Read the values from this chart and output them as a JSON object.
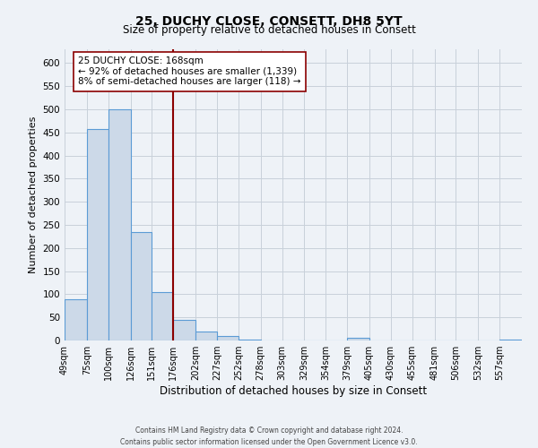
{
  "title": "25, DUCHY CLOSE, CONSETT, DH8 5YT",
  "subtitle": "Size of property relative to detached houses in Consett",
  "xlabel": "Distribution of detached houses by size in Consett",
  "ylabel": "Number of detached properties",
  "bar_color": "#ccd9e8",
  "bar_edge_color": "#5b9bd5",
  "bins": [
    49,
    75,
    100,
    126,
    151,
    176,
    202,
    227,
    252,
    278,
    303,
    329,
    354,
    379,
    405,
    430,
    455,
    481,
    506,
    532,
    557,
    583
  ],
  "bin_labels": [
    "49sqm",
    "75sqm",
    "100sqm",
    "126sqm",
    "151sqm",
    "176sqm",
    "202sqm",
    "227sqm",
    "252sqm",
    "278sqm",
    "303sqm",
    "329sqm",
    "354sqm",
    "379sqm",
    "405sqm",
    "430sqm",
    "455sqm",
    "481sqm",
    "506sqm",
    "532sqm",
    "557sqm"
  ],
  "bar_heights": [
    90,
    458,
    500,
    235,
    105,
    45,
    20,
    10,
    2,
    0,
    0,
    0,
    0,
    5,
    0,
    0,
    0,
    0,
    0,
    0,
    2
  ],
  "property_line_x": 176,
  "property_line_color": "#8b0000",
  "ylim": [
    0,
    630
  ],
  "yticks": [
    0,
    50,
    100,
    150,
    200,
    250,
    300,
    350,
    400,
    450,
    500,
    550,
    600
  ],
  "annotation_title": "25 DUCHY CLOSE: 168sqm",
  "annotation_line1": "← 92% of detached houses are smaller (1,339)",
  "annotation_line2": "8% of semi-detached houses are larger (118) →",
  "footer1": "Contains HM Land Registry data © Crown copyright and database right 2024.",
  "footer2": "Contains public sector information licensed under the Open Government Licence v3.0.",
  "background_color": "#eef2f7",
  "grid_color": "#c8d0da",
  "plot_bg_color": "#eef2f7"
}
